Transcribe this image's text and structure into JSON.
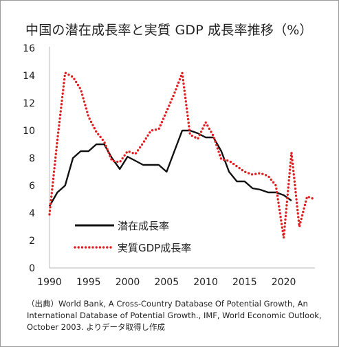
{
  "chart_data": {
    "type": "line",
    "title": "中国の潜在成長率と実質 GDP 成長率推移（%）",
    "xlabel": "",
    "ylabel": "",
    "xlim": [
      1990,
      2024
    ],
    "ylim": [
      0,
      16
    ],
    "x_ticks": [
      "1990",
      "1995",
      "2000",
      "2005",
      "2010",
      "2015",
      "2020"
    ],
    "x_tick_values": [
      1990,
      1995,
      2000,
      2005,
      2010,
      2015,
      2020
    ],
    "y_ticks": [
      "0",
      "2",
      "4",
      "6",
      "8",
      "10",
      "12",
      "14",
      "16"
    ],
    "y_tick_values": [
      0,
      2,
      4,
      6,
      8,
      10,
      12,
      14,
      16
    ],
    "grid": false,
    "legend_position": "center-left",
    "series": [
      {
        "name": "潜在成長率",
        "style": "solid",
        "color": "#111111",
        "x": [
          1990,
          1991,
          1992,
          1993,
          1994,
          1995,
          1996,
          1997,
          1998,
          1999,
          2000,
          2001,
          2002,
          2003,
          2004,
          2005,
          2006,
          2007,
          2008,
          2009,
          2010,
          2011,
          2012,
          2013,
          2014,
          2015,
          2016,
          2017,
          2018,
          2019,
          2020,
          2021
        ],
        "values": [
          4.5,
          5.5,
          6.0,
          8.0,
          8.5,
          8.5,
          9.0,
          9.0,
          8.0,
          7.2,
          8.1,
          7.8,
          7.5,
          7.5,
          7.5,
          7.0,
          8.5,
          10.0,
          10.0,
          9.8,
          9.5,
          9.5,
          8.5,
          7.0,
          6.3,
          6.3,
          5.8,
          5.7,
          5.5,
          5.5,
          5.3,
          4.9
        ]
      },
      {
        "name": "実質GDP成長率",
        "style": "dotted",
        "color": "#e02020",
        "x": [
          1990,
          1991,
          1992,
          1993,
          1994,
          1995,
          1996,
          1997,
          1998,
          1999,
          2000,
          2001,
          2002,
          2003,
          2004,
          2005,
          2006,
          2007,
          2008,
          2009,
          2010,
          2011,
          2012,
          2013,
          2014,
          2015,
          2016,
          2017,
          2018,
          2019,
          2020,
          2021,
          2022,
          2023,
          2024
        ],
        "values": [
          3.9,
          9.3,
          14.2,
          13.9,
          13.0,
          11.0,
          9.9,
          9.2,
          7.8,
          7.7,
          8.5,
          8.3,
          9.1,
          10.0,
          10.1,
          11.4,
          12.7,
          14.2,
          9.7,
          9.4,
          10.6,
          9.6,
          7.9,
          7.8,
          7.4,
          7.0,
          6.8,
          6.9,
          6.7,
          6.0,
          2.2,
          8.4,
          3.0,
          5.2,
          5.0
        ]
      }
    ],
    "source_note": "（出典）World Bank, A Cross-Country Database Of Potential Growth, An International Database of Potential Growth., IMF, World Economic Outlook, October 2003. よりデータ取得し作成"
  },
  "colors": {
    "axis": "#b9b9b9",
    "text": "#222222",
    "potential": "#111111",
    "gdp": "#e02020"
  }
}
